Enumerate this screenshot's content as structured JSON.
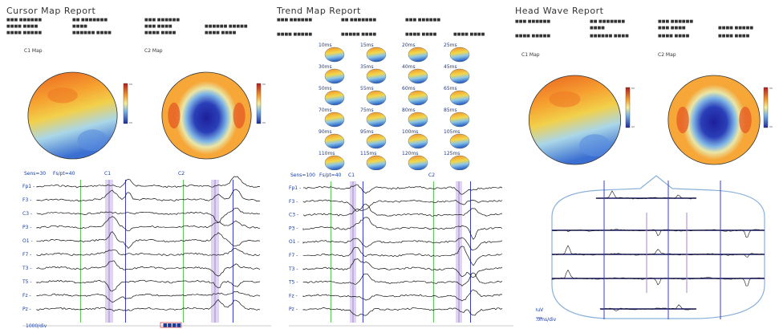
{
  "panel1": {
    "title": "Cursor Map Report",
    "header_rows": [
      [
        "■■■ ■■■■■■",
        "■■ ■■■■■■■",
        "■■■ ■■■■■■"
      ],
      [
        "■■■■ ■■■■",
        "■■■■",
        "■■■ ■■■■",
        "■■■■■■ ■■■■■"
      ],
      [
        "■■■■ ■■■■■",
        "■■■■■■ ■■■■",
        "■■■■ ■■■■",
        "■■■■ ■■■■"
      ]
    ],
    "map_labels": [
      "C1 Map",
      "C2 Map"
    ],
    "eeg": {
      "top_labels": [
        "Sens=30",
        "Fs/pt=40",
        "C1",
        "C2"
      ],
      "channel_labels": [
        "Fp1 -",
        "F3 -",
        "C3 -",
        "P3 -",
        "O1 -",
        "F7 -",
        "T3 -",
        "T5 -",
        "Fz -",
        "Pz -"
      ],
      "footer_left": "1000/div",
      "footer_right": "■■■■"
    }
  },
  "panel2": {
    "title": "Trend Map Report",
    "header_rows": [
      [
        "■■■ ■■■■■■",
        "■■ ■■■■■■■",
        "■■■ ■■■■■■"
      ],
      [
        "■■■■ ■■■■■",
        "■■■■■ ■■■■",
        "■■■■ ■■■■",
        "■■■■ ■■■■"
      ]
    ],
    "grid_labels": [
      "10ms",
      "15ms",
      "20ms",
      "25ms",
      "30ms",
      "35ms",
      "40ms",
      "45ms",
      "50ms",
      "55ms",
      "60ms",
      "65ms",
      "70ms",
      "75ms",
      "80ms",
      "85ms",
      "90ms",
      "95ms",
      "100ms",
      "105ms",
      "110ms",
      "115ms",
      "120ms",
      "125ms"
    ],
    "eeg": {
      "top_labels": [
        "Sens=100",
        "Fs/pt=40",
        "C1",
        "C2"
      ],
      "channel_labels": [
        "Fp1 -",
        "F3 -",
        "C3 -",
        "P3 -",
        "O1 -",
        "F7 -",
        "T3 -",
        "T5 -",
        "Fz -",
        "Pz -"
      ]
    }
  },
  "panel3": {
    "title": "Head Wave Report",
    "header_rows": [
      [
        "■■■ ■■■■■■",
        "■■ ■■■■■■■",
        "■■■ ■■■■■■"
      ],
      [
        "■■■■",
        "■■■ ■■■■",
        "■■■■ ■■■■■"
      ],
      [
        "■■■■ ■■■■■",
        "■■■■■■ ■■■■",
        "■■■■ ■■■■",
        "■■■■ ■■■■"
      ]
    ],
    "map_labels": [
      "C1 Map",
      "C2 Map"
    ],
    "headwave": {
      "scale_label": "10.0uV",
      "footer": "100.0ms/div"
    }
  },
  "colors": {
    "map_high": "#e85a1e",
    "map_mid": "#f2d04a",
    "map_low": "#2a3fb8",
    "trace": "#111111",
    "marker_green": "#5cc85c",
    "marker_purple": "#a487d6",
    "marker_blue": "#3a3fd0"
  }
}
